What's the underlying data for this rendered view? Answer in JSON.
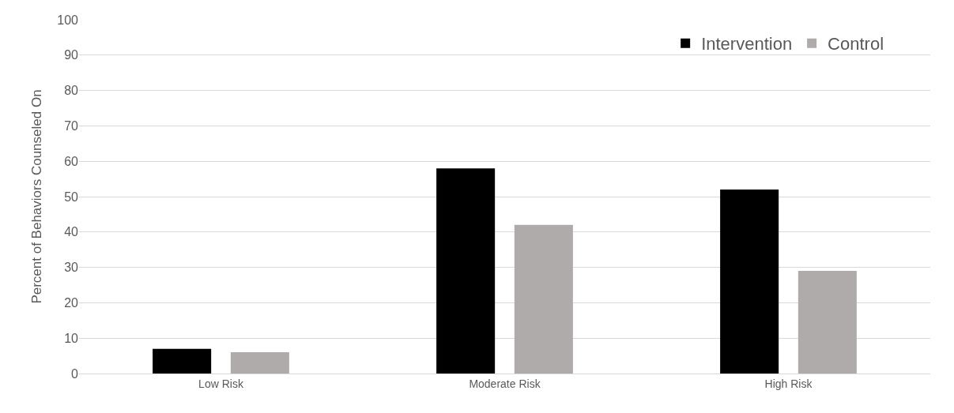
{
  "chart_data": {
    "type": "bar",
    "ylabel": "Percent of Behaviors Counseled On",
    "categories": [
      "Low Risk",
      "Moderate Risk",
      "High Risk"
    ],
    "series": [
      {
        "name": "Intervention",
        "color": "#000000",
        "values": [
          7,
          58,
          52
        ]
      },
      {
        "name": "Control",
        "color": "#afabab",
        "values": [
          6,
          42,
          29
        ]
      }
    ],
    "ylim": [
      0,
      100
    ],
    "yticks": [
      0,
      10,
      20,
      30,
      40,
      50,
      60,
      70,
      80,
      90,
      100
    ],
    "grid": "y",
    "legend": "top right"
  }
}
